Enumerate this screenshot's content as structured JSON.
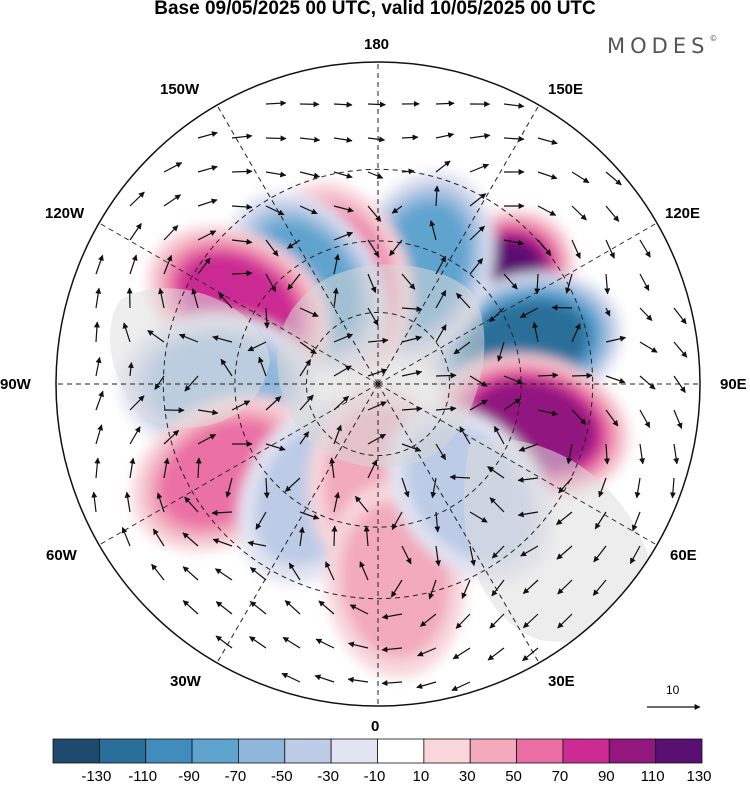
{
  "title": "Base 09/05/2025 00 UTC, valid 10/05/2025 00 UTC",
  "brand": "MODES",
  "brand_mark": "©",
  "longitude_labels": {
    "top": "180",
    "bottom": "0",
    "left": "90W",
    "right": "90E",
    "upper_left_1": "150W",
    "upper_left_2": "120W",
    "upper_right_1": "150E",
    "upper_right_2": "120E",
    "lower_left_1": "60W",
    "lower_left_2": "30W",
    "lower_right_1": "60E",
    "lower_right_2": "30E"
  },
  "vector_key": "10",
  "colorbar": {
    "ticks": [
      "-130",
      "-110",
      "-90",
      "-70",
      "-50",
      "-30",
      "-10",
      "10",
      "30",
      "50",
      "70",
      "90",
      "110",
      "130"
    ],
    "colors": [
      "#1d4a6e",
      "#2a6e9a",
      "#3f8cbd",
      "#5fa3cf",
      "#8fb7dc",
      "#bccbe6",
      "#e2e4f2",
      "#ffffff",
      "#f8d6dc",
      "#f2aabc",
      "#eb6fa5",
      "#cc2b93",
      "#92177f",
      "#5a0f72"
    ]
  },
  "map_data": {
    "projection": "north polar stereographic",
    "anomalies": [
      {
        "lon": 130,
        "lat": 50,
        "value": 120
      },
      {
        "lon": 105,
        "lat": 47,
        "value": -110
      },
      {
        "lon": 75,
        "lat": 45,
        "value": 90
      },
      {
        "lon": 160,
        "lat": 55,
        "value": -70
      },
      {
        "lon": 200,
        "lat": 58,
        "value": 60
      },
      {
        "lon": 215,
        "lat": 55,
        "value": -75
      },
      {
        "lon": 240,
        "lat": 45,
        "value": 80
      },
      {
        "lon": 270,
        "lat": 45,
        "value": -55
      },
      {
        "lon": 300,
        "lat": 40,
        "value": 50
      },
      {
        "lon": 330,
        "lat": 55,
        "value": -30
      },
      {
        "lon": 0,
        "lat": 62,
        "value": 45
      },
      {
        "lon": 5,
        "lat": 35,
        "value": 30
      },
      {
        "lon": 40,
        "lat": 50,
        "value": -30
      }
    ]
  }
}
